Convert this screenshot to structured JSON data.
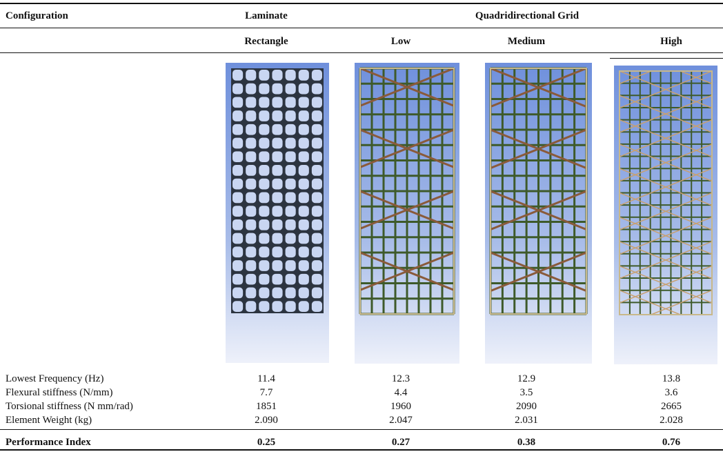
{
  "header": {
    "first": "Configuration",
    "laminate": "Laminate",
    "grid": "Quadridirectional Grid"
  },
  "subheader": [
    "Rectangle",
    "Low",
    "Medium",
    "High"
  ],
  "rows": [
    {
      "label": "Lowest Frequency (Hz)",
      "values": [
        "11.4",
        "12.3",
        "12.9",
        "13.8"
      ]
    },
    {
      "label": "Flexural stiffness (N/mm)",
      "values": [
        "7.7",
        "4.4",
        "3.5",
        "3.6"
      ]
    },
    {
      "label": "Torsional stiffness (N mm/rad)",
      "values": [
        "1851",
        "1960",
        "2090",
        "2665"
      ]
    },
    {
      "label": "Element Weight (kg)",
      "values": [
        "2.090",
        "2.047",
        "2.031",
        "2.028"
      ]
    }
  ],
  "performance": {
    "label": "Performance Index",
    "values": [
      "0.25",
      "0.27",
      "0.38",
      "0.76"
    ]
  }
}
